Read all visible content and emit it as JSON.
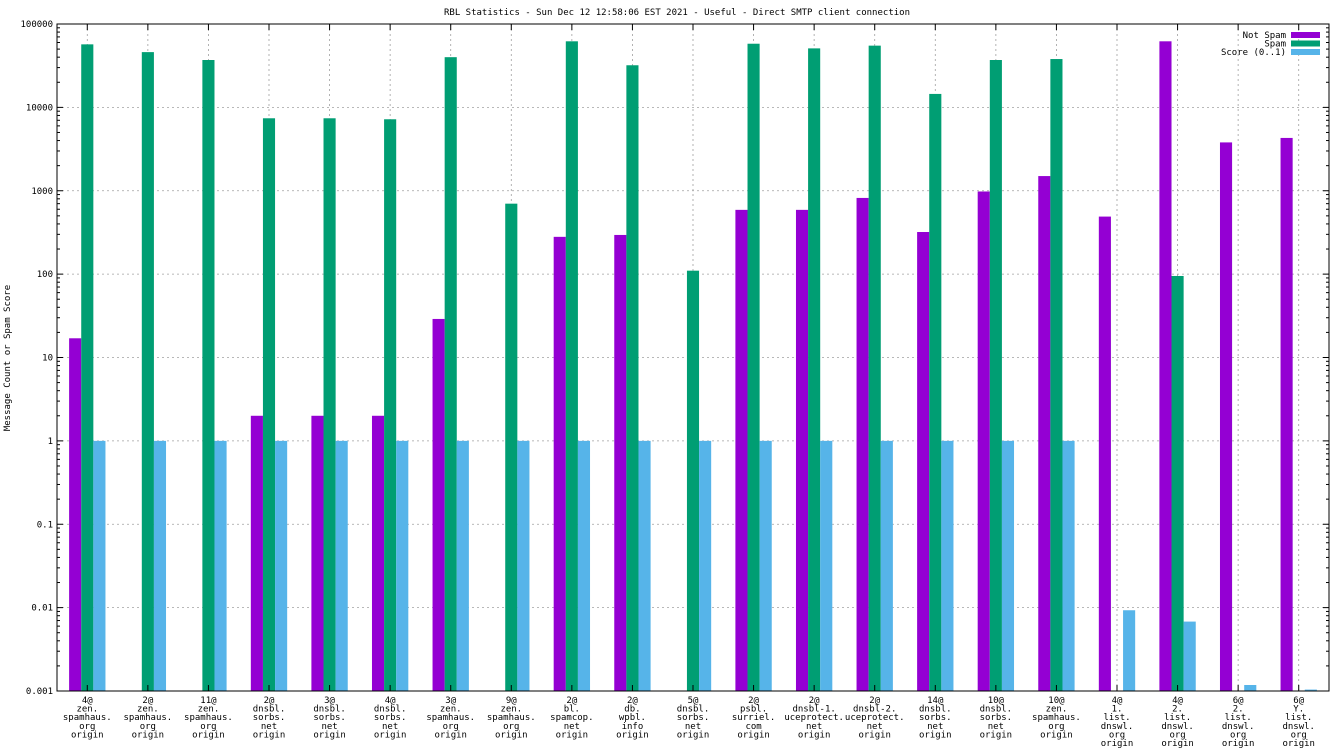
{
  "chart_data": {
    "type": "bar",
    "title": "RBL Statistics - Sun Dec 12 12:58:06 EST 2021 - Useful - Direct SMTP client connection",
    "xlabel": "",
    "ylabel": "Message Count or Spam Score",
    "yscale": "log",
    "ylim": [
      0.001,
      100000
    ],
    "y_ticks": [
      "100000",
      "10000",
      "1000",
      "100",
      "10",
      "1",
      "0.1",
      "0.01",
      "0.001"
    ],
    "grid": true,
    "legend_position": "top-right",
    "categories": [
      [
        "4@",
        "zen.",
        "spamhaus.",
        "org",
        "origin"
      ],
      [
        "2@",
        "zen.",
        "spamhaus.",
        "org",
        "origin"
      ],
      [
        "11@",
        "zen.",
        "spamhaus.",
        "org",
        "origin"
      ],
      [
        "2@",
        "dnsbl.",
        "sorbs.",
        "net",
        "origin"
      ],
      [
        "3@",
        "dnsbl.",
        "sorbs.",
        "net",
        "origin"
      ],
      [
        "4@",
        "dnsbl.",
        "sorbs.",
        "net",
        "origin"
      ],
      [
        "3@",
        "zen.",
        "spamhaus.",
        "org",
        "origin"
      ],
      [
        "9@",
        "zen.",
        "spamhaus.",
        "org",
        "origin"
      ],
      [
        "2@",
        "bl.",
        "spamcop.",
        "net",
        "origin"
      ],
      [
        "2@",
        "db.",
        "wpbl.",
        "info",
        "origin"
      ],
      [
        "5@",
        "dnsbl.",
        "sorbs.",
        "net",
        "origin"
      ],
      [
        "2@",
        "psbl.",
        "surriel.",
        "com",
        "origin"
      ],
      [
        "2@",
        "dnsbl-1.",
        "uceprotect.",
        "net",
        "origin"
      ],
      [
        "2@",
        "dnsbl-2.",
        "uceprotect.",
        "net",
        "origin"
      ],
      [
        "14@",
        "dnsbl.",
        "sorbs.",
        "net",
        "origin"
      ],
      [
        "10@",
        "dnsbl.",
        "sorbs.",
        "net",
        "origin"
      ],
      [
        "10@",
        "zen.",
        "spamhaus.",
        "org",
        "origin"
      ],
      [
        "4@",
        "1.",
        "list.",
        "dnswl.",
        "org",
        "origin"
      ],
      [
        "4@",
        "2.",
        "list.",
        "dnswl.",
        "org",
        "origin"
      ],
      [
        "6@",
        "2.",
        "list.",
        "dnswl.",
        "org",
        "origin"
      ],
      [
        "6@",
        "Y.",
        "list.",
        "dnswl.",
        "org",
        "origin"
      ]
    ],
    "series": [
      {
        "name": "Not Spam",
        "color": "#9400d3",
        "values": [
          17,
          0,
          0,
          2,
          2,
          2,
          29,
          0,
          280,
          295,
          0,
          590,
          590,
          820,
          320,
          980,
          1500,
          490,
          62000,
          3800,
          4300
        ]
      },
      {
        "name": "Spam",
        "color": "#009e73",
        "values": [
          57000,
          46000,
          37000,
          7400,
          7400,
          7200,
          40000,
          700,
          62000,
          32000,
          110,
          58000,
          51000,
          55000,
          14500,
          37000,
          38000,
          0,
          95,
          0,
          0
        ]
      },
      {
        "name": "Score (0..1)",
        "color": "#56b4e9",
        "values": [
          1,
          1,
          1,
          1,
          1,
          1,
          1,
          1,
          1,
          1,
          1,
          1,
          1,
          1,
          1,
          1,
          1,
          0.0093,
          0.0068,
          0.00118,
          0.00104
        ]
      }
    ]
  }
}
